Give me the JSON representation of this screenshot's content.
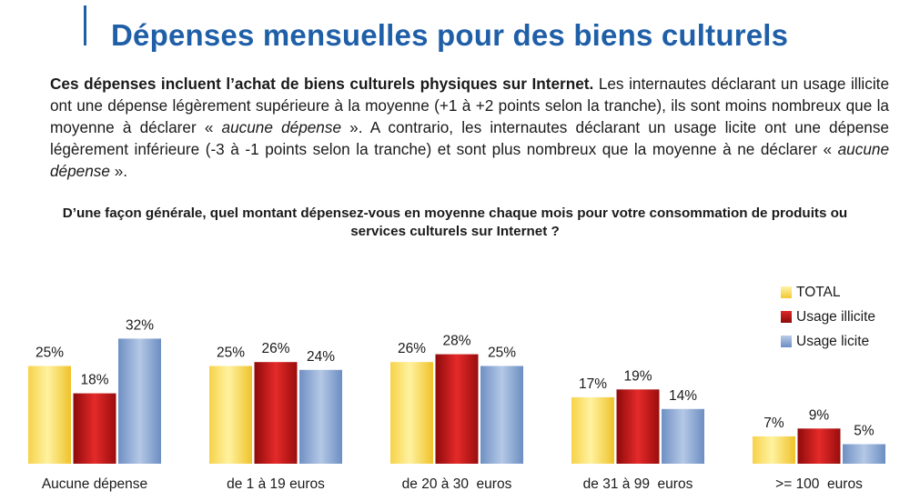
{
  "title": "Dépenses mensuelles pour des biens culturels",
  "intro": {
    "bold": "Ces dépenses incluent l’achat de biens culturels physiques sur Internet.",
    "part1": " Les internautes déclarant un usage illicite ont une dépense légèrement supérieure à la moyenne (+1 à +2 points selon la tranche), ils sont moins nombreux que la moyenne à déclarer « ",
    "italic1": "aucune dépense",
    "part2": " ». A contrario, les internautes déclarant un usage licite ont une dépense légèrement inférieure (-3 à -1 points selon la tranche) et sont plus nombreux que la moyenne à ne déclarer « ",
    "italic2": "aucune dépense",
    "part3": " »."
  },
  "chart_data": {
    "type": "bar",
    "title": "D’une façon générale, quel montant dépensez-vous en moyenne chaque mois pour votre consommation de produits ou services culturels sur Internet ?",
    "categories": [
      "Aucune dépense",
      "de 1 à 19 euros",
      "de 20 à 30  euros",
      "de 31 à 99  euros",
      ">= 100  euros"
    ],
    "series": [
      {
        "name": "TOTAL",
        "values": [
          25,
          25,
          26,
          17,
          7
        ],
        "labels": [
          "25%",
          "25%",
          "26%",
          "17%",
          "7%"
        ],
        "color": "#f2c830"
      },
      {
        "name": "Usage illicite",
        "values": [
          18,
          26,
          28,
          19,
          9
        ],
        "labels": [
          "18%",
          "26%",
          "28%",
          "19%",
          "9%"
        ],
        "color": "#b81414"
      },
      {
        "name": "Usage licite",
        "values": [
          32,
          24,
          25,
          14,
          5
        ],
        "labels": [
          "32%",
          "24%",
          "25%",
          "14%",
          "5%"
        ],
        "color": "#7c9ccc"
      }
    ],
    "unit": "%",
    "ylim": [
      0,
      32
    ],
    "grid": false,
    "legend_position": "top-right"
  }
}
